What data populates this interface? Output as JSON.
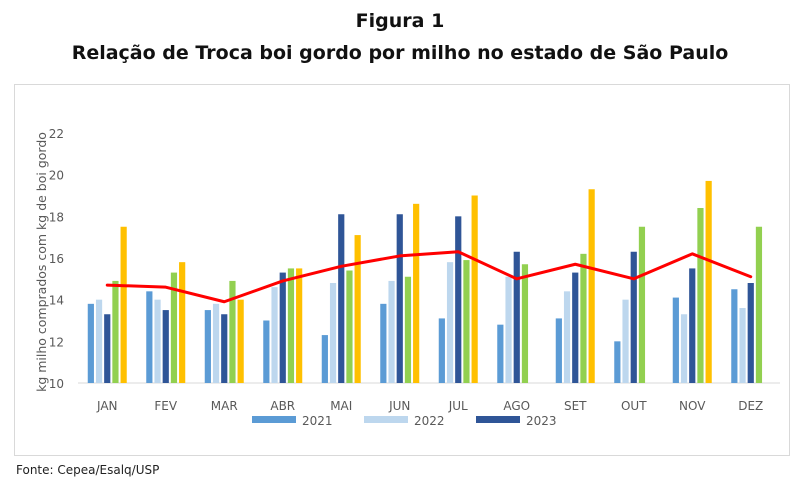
{
  "header": {
    "figure_label": "Figura 1",
    "title": "Relação de Troca boi gordo por milho no estado de São Paulo"
  },
  "footer": {
    "source": "Fonte: Cepea/Esalq/USP"
  },
  "chart_data": {
    "type": "bar",
    "categories": [
      "JAN",
      "FEV",
      "MAR",
      "ABR",
      "MAI",
      "JUN",
      "JUL",
      "AGO",
      "SET",
      "OUT",
      "NOV",
      "DEZ"
    ],
    "ylabel": "kg milho comprados com kg de boi gordo",
    "ylim": [
      10,
      22
    ],
    "yticks": [
      10,
      12,
      14,
      16,
      18,
      20,
      22
    ],
    "grid": false,
    "legend_position": "bottom",
    "series": [
      {
        "name": "2021",
        "color": "#5b9bd5",
        "values": [
          13.8,
          14.4,
          13.5,
          13.0,
          12.3,
          13.8,
          13.1,
          12.8,
          13.1,
          12.0,
          14.1,
          14.5
        ]
      },
      {
        "name": "2022",
        "color": "#bdd7ee",
        "values": [
          14.0,
          14.0,
          13.8,
          14.6,
          14.8,
          14.9,
          15.8,
          15.1,
          14.4,
          14.0,
          13.3,
          13.6
        ]
      },
      {
        "name": "2023",
        "color": "#2f5597",
        "values": [
          13.3,
          13.5,
          13.3,
          15.3,
          18.1,
          18.1,
          18.0,
          16.3,
          15.3,
          16.3,
          15.5,
          14.8
        ]
      },
      {
        "name": "",
        "color": "#92d050",
        "values": [
          14.9,
          15.3,
          14.9,
          15.5,
          15.4,
          15.1,
          15.9,
          15.7,
          16.2,
          17.5,
          18.4,
          17.5
        ]
      },
      {
        "name": "",
        "color": "#ffc000",
        "values": [
          17.5,
          15.8,
          14.0,
          15.5,
          17.1,
          18.6,
          19.0,
          null,
          19.3,
          null,
          19.7,
          null
        ]
      }
    ],
    "line": {
      "color": "#ff0000",
      "values": [
        14.7,
        14.6,
        13.9,
        14.9,
        15.6,
        16.1,
        16.3,
        15.0,
        15.7,
        15.0,
        16.2,
        15.1
      ]
    }
  }
}
